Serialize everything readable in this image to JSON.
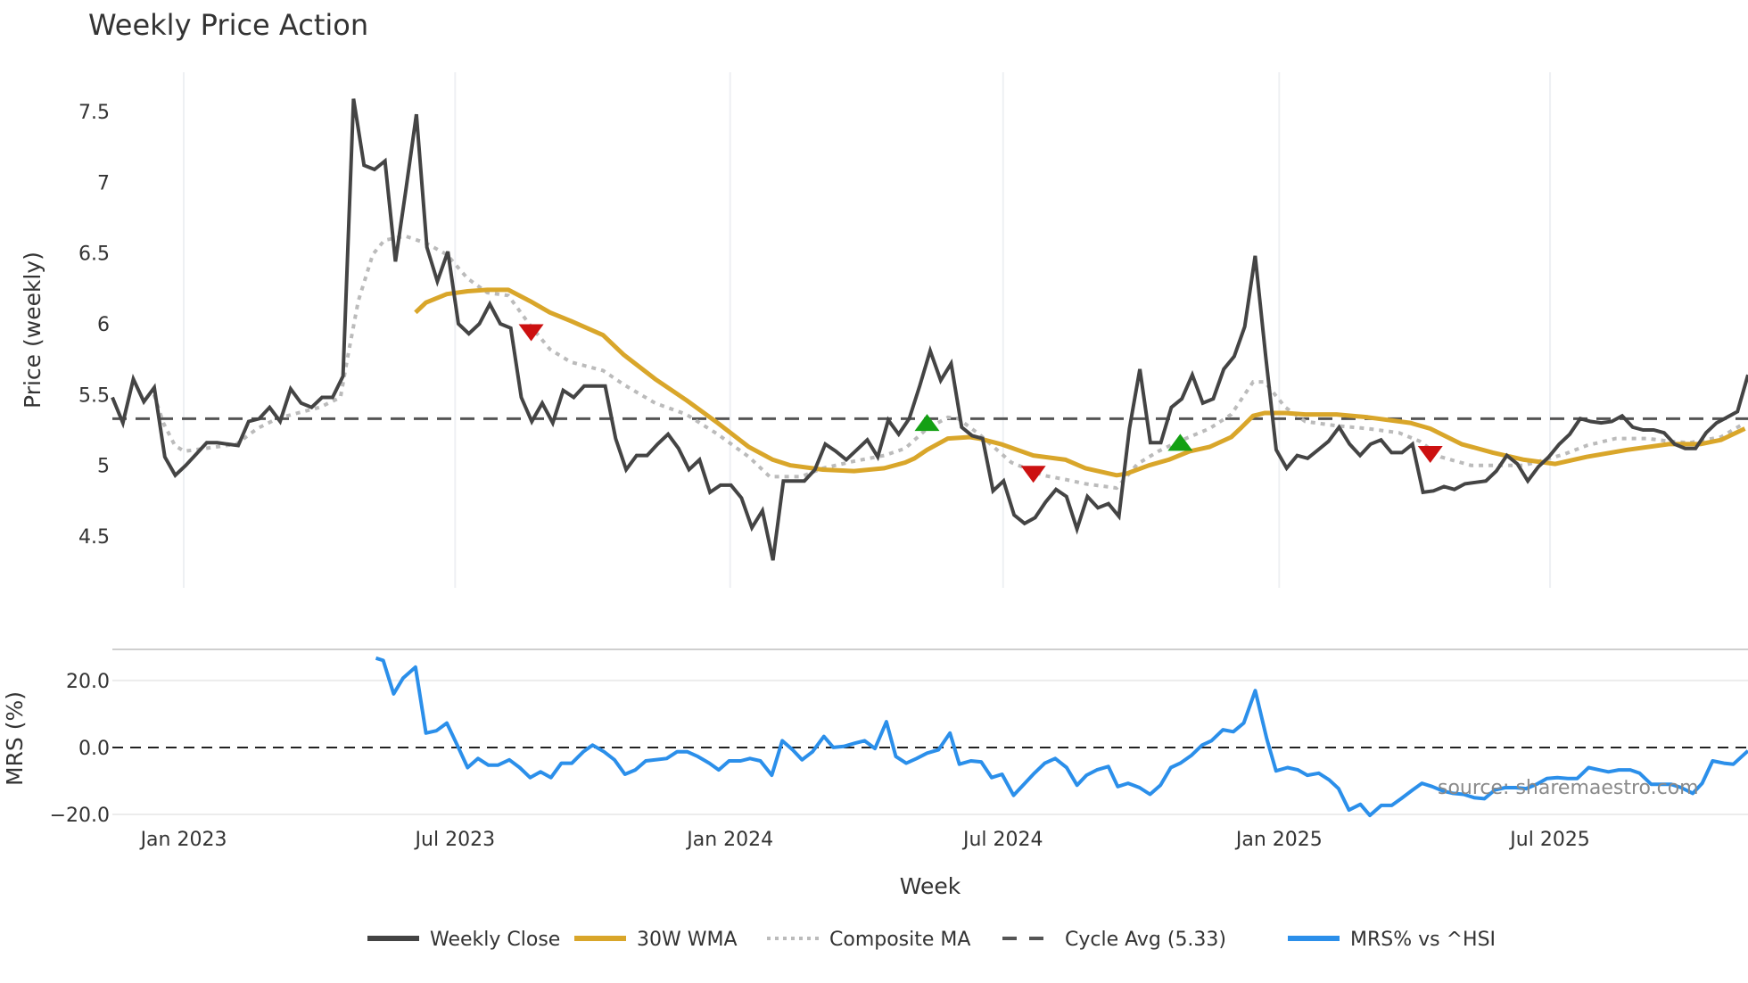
{
  "chart_data": {
    "type": "line",
    "title": "Weekly Price Action",
    "xlabel": "Week",
    "source_text": "source: sharemaestro.com",
    "x_range_weeks": [
      0,
      157
    ],
    "x_ticks": [
      {
        "label": "Jan 2023",
        "week": 6.85
      },
      {
        "label": "Jul 2023",
        "week": 32.9
      },
      {
        "label": "Jan 2024",
        "week": 59.3
      },
      {
        "label": "Jul 2024",
        "week": 85.5
      },
      {
        "label": "Jan 2025",
        "week": 112.0
      },
      {
        "label": "Jul 2025",
        "week": 138.0
      }
    ],
    "price_panel": {
      "ylabel": "Price (weekly)",
      "ylim": [
        4.135,
        7.777
      ],
      "y_ticks": [
        {
          "label": "4.5",
          "value": 4.5
        },
        {
          "label": "5",
          "value": 5
        },
        {
          "label": "5.5",
          "value": 5.5
        },
        {
          "label": "6",
          "value": 6
        },
        {
          "label": "6.5",
          "value": 6.5
        },
        {
          "label": "7",
          "value": 7
        },
        {
          "label": "7.5",
          "value": 7.5
        }
      ],
      "cycle_avg": 5.33,
      "weekly_close": [
        5.48,
        5.3,
        5.61,
        5.45,
        5.55,
        5.06,
        4.93,
        5.0,
        5.08,
        5.16,
        5.16,
        5.15,
        5.14,
        5.31,
        5.33,
        5.41,
        5.31,
        5.54,
        5.44,
        5.41,
        5.48,
        5.48,
        5.63,
        7.59,
        7.12,
        7.09,
        7.15,
        6.44,
        6.95,
        7.48,
        6.54,
        6.3,
        6.51,
        6.0,
        5.93,
        6.0,
        6.14,
        6.0,
        5.97,
        5.48,
        5.31,
        5.44,
        5.3,
        5.53,
        5.48,
        5.56,
        5.56,
        5.56,
        5.19,
        4.97,
        5.07,
        5.07,
        5.15,
        5.22,
        5.12,
        4.97,
        5.04,
        4.81,
        4.86,
        4.86,
        4.77,
        4.56,
        4.68,
        4.33,
        4.89,
        4.89,
        4.89,
        4.97,
        5.15,
        5.1,
        5.04,
        5.11,
        5.18,
        5.06,
        5.32,
        5.22,
        5.33,
        5.56,
        5.81,
        5.6,
        5.72,
        5.27,
        5.21,
        5.19,
        4.82,
        4.89,
        4.65,
        4.59,
        4.63,
        4.74,
        4.83,
        4.78,
        4.55,
        4.78,
        4.7,
        4.73,
        4.64,
        5.26,
        5.68,
        5.16,
        5.16,
        5.41,
        5.47,
        5.64,
        5.44,
        5.47,
        5.68,
        5.77,
        5.98,
        6.48,
        5.77,
        5.11,
        4.98,
        5.07,
        5.05,
        5.11,
        5.17,
        5.27,
        5.15,
        5.07,
        5.15,
        5.18,
        5.09,
        5.09,
        5.15,
        4.81,
        4.82,
        4.85,
        4.83,
        4.87,
        4.88,
        4.89,
        4.96,
        5.07,
        5.01,
        4.89,
        4.99,
        5.06,
        5.15,
        5.22,
        5.33,
        5.31,
        5.3,
        5.31,
        5.35,
        5.27,
        5.25,
        5.25,
        5.23,
        5.15,
        5.12,
        5.12,
        5.23,
        5.3,
        5.34,
        5.38,
        5.64
      ],
      "wma_30w": [
        [
          29.1,
          6.08
        ],
        [
          30.1,
          6.15
        ],
        [
          32.1,
          6.21
        ],
        [
          34.1,
          6.23
        ],
        [
          36.0,
          6.24
        ],
        [
          38.0,
          6.24
        ],
        [
          40.1,
          6.16
        ],
        [
          42.0,
          6.08
        ],
        [
          44.0,
          6.02
        ],
        [
          47.1,
          5.92
        ],
        [
          49.1,
          5.78
        ],
        [
          52.1,
          5.61
        ],
        [
          55.1,
          5.46
        ],
        [
          58.1,
          5.3
        ],
        [
          61.1,
          5.13
        ],
        [
          63.4,
          5.04
        ],
        [
          65.1,
          5.0
        ],
        [
          68.2,
          4.97
        ],
        [
          71.2,
          4.96
        ],
        [
          74.1,
          4.98
        ],
        [
          76.1,
          5.02
        ],
        [
          77.0,
          5.05
        ],
        [
          78.2,
          5.11
        ],
        [
          80.2,
          5.19
        ],
        [
          82.3,
          5.2
        ],
        [
          83.2,
          5.19
        ],
        [
          85.3,
          5.15
        ],
        [
          88.4,
          5.07
        ],
        [
          91.5,
          5.04
        ],
        [
          93.4,
          4.98
        ],
        [
          96.4,
          4.93
        ],
        [
          97.3,
          4.94
        ],
        [
          99.5,
          5.0
        ],
        [
          101.4,
          5.04
        ],
        [
          103.4,
          5.1
        ],
        [
          105.3,
          5.13
        ],
        [
          107.4,
          5.2
        ],
        [
          108.4,
          5.27
        ],
        [
          109.5,
          5.35
        ],
        [
          110.6,
          5.37
        ],
        [
          112.6,
          5.37
        ],
        [
          114.5,
          5.36
        ],
        [
          117.5,
          5.36
        ],
        [
          120.5,
          5.34
        ],
        [
          124.6,
          5.3
        ],
        [
          126.5,
          5.26
        ],
        [
          129.5,
          5.15
        ],
        [
          132.5,
          5.09
        ],
        [
          135.5,
          5.04
        ],
        [
          138.5,
          5.01
        ],
        [
          141.5,
          5.06
        ],
        [
          145.4,
          5.11
        ],
        [
          149.4,
          5.15
        ],
        [
          152.4,
          5.15
        ],
        [
          154.4,
          5.18
        ],
        [
          156.7,
          5.26
        ]
      ],
      "composite_ma": [
        [
          4.0,
          5.5
        ],
        [
          4.9,
          5.3
        ],
        [
          6.0,
          5.14
        ],
        [
          6.9,
          5.1
        ],
        [
          8.9,
          5.12
        ],
        [
          11.9,
          5.15
        ],
        [
          13.9,
          5.26
        ],
        [
          15.8,
          5.33
        ],
        [
          17.8,
          5.37
        ],
        [
          19.9,
          5.41
        ],
        [
          21.9,
          5.48
        ],
        [
          22.6,
          5.77
        ],
        [
          23.6,
          6.16
        ],
        [
          25.0,
          6.49
        ],
        [
          26.1,
          6.59
        ],
        [
          28.1,
          6.62
        ],
        [
          30.1,
          6.57
        ],
        [
          32.1,
          6.49
        ],
        [
          34.1,
          6.32
        ],
        [
          36.0,
          6.22
        ],
        [
          38.0,
          6.2
        ],
        [
          40.1,
          5.99
        ],
        [
          42.0,
          5.82
        ],
        [
          44.0,
          5.73
        ],
        [
          47.1,
          5.67
        ],
        [
          49.1,
          5.57
        ],
        [
          52.1,
          5.44
        ],
        [
          55.1,
          5.36
        ],
        [
          58.1,
          5.22
        ],
        [
          61.1,
          5.06
        ],
        [
          63.1,
          4.92
        ],
        [
          66.1,
          4.92
        ],
        [
          68.2,
          4.98
        ],
        [
          71.2,
          5.03
        ],
        [
          74.1,
          5.07
        ],
        [
          76.1,
          5.12
        ],
        [
          78.2,
          5.26
        ],
        [
          80.2,
          5.34
        ],
        [
          81.2,
          5.33
        ],
        [
          83.2,
          5.22
        ],
        [
          86.3,
          5.02
        ],
        [
          89.3,
          4.93
        ],
        [
          91.5,
          4.9
        ],
        [
          93.4,
          4.87
        ],
        [
          96.4,
          4.84
        ],
        [
          98.4,
          5.01
        ],
        [
          100.4,
          5.1
        ],
        [
          102.4,
          5.17
        ],
        [
          105.3,
          5.26
        ],
        [
          107.4,
          5.36
        ],
        [
          109.5,
          5.59
        ],
        [
          110.6,
          5.59
        ],
        [
          112.6,
          5.41
        ],
        [
          114.5,
          5.31
        ],
        [
          117.5,
          5.28
        ],
        [
          120.5,
          5.26
        ],
        [
          123.5,
          5.23
        ],
        [
          125.5,
          5.17
        ],
        [
          127.5,
          5.06
        ],
        [
          130.4,
          5.0
        ],
        [
          133.4,
          5.0
        ],
        [
          135.5,
          5.0
        ],
        [
          137.5,
          5.04
        ],
        [
          139.4,
          5.08
        ],
        [
          141.5,
          5.14
        ],
        [
          144.3,
          5.19
        ],
        [
          147.4,
          5.19
        ],
        [
          149.4,
          5.17
        ],
        [
          151.4,
          5.16
        ],
        [
          154.4,
          5.2
        ],
        [
          156.7,
          5.3
        ]
      ],
      "signals": [
        {
          "type": "sell",
          "week": 40.2,
          "value": 5.94
        },
        {
          "type": "buy",
          "week": 78.2,
          "value": 5.3
        },
        {
          "type": "sell",
          "week": 88.4,
          "value": 4.94
        },
        {
          "type": "buy",
          "week": 102.5,
          "value": 5.16
        },
        {
          "type": "sell",
          "week": 126.5,
          "value": 5.08
        }
      ]
    },
    "mrs_panel": {
      "ylabel": "MRS (%)",
      "ylim": [
        -23.2,
        29.3
      ],
      "y_ticks": [
        {
          "label": "20.0",
          "value": 20
        },
        {
          "label": "0.0",
          "value": 0
        },
        {
          "label": "−20.0",
          "value": -20
        }
      ],
      "mrs_vs_hsi": [
        [
          25.3,
          26.7
        ],
        [
          26.0,
          26.0
        ],
        [
          27.0,
          16.0
        ],
        [
          27.9,
          20.7
        ],
        [
          29.1,
          24.0
        ],
        [
          30.1,
          4.3
        ],
        [
          31.1,
          5.0
        ],
        [
          32.1,
          7.3
        ],
        [
          33.1,
          0.7
        ],
        [
          34.1,
          -6.0
        ],
        [
          35.1,
          -3.3
        ],
        [
          36.1,
          -5.3
        ],
        [
          37.0,
          -5.3
        ],
        [
          38.1,
          -3.7
        ],
        [
          39.1,
          -6.0
        ],
        [
          40.1,
          -9.0
        ],
        [
          41.1,
          -7.3
        ],
        [
          42.1,
          -9.0
        ],
        [
          43.1,
          -4.7
        ],
        [
          44.1,
          -4.7
        ],
        [
          45.2,
          -1.3
        ],
        [
          46.1,
          0.7
        ],
        [
          47.2,
          -1.3
        ],
        [
          48.2,
          -3.7
        ],
        [
          49.2,
          -8.0
        ],
        [
          50.2,
          -6.7
        ],
        [
          51.2,
          -4.0
        ],
        [
          53.2,
          -3.3
        ],
        [
          54.2,
          -1.3
        ],
        [
          55.2,
          -1.3
        ],
        [
          56.2,
          -2.7
        ],
        [
          57.3,
          -4.7
        ],
        [
          58.2,
          -6.7
        ],
        [
          59.2,
          -4.0
        ],
        [
          60.3,
          -4.0
        ],
        [
          61.2,
          -3.3
        ],
        [
          62.2,
          -4.0
        ],
        [
          63.3,
          -8.3
        ],
        [
          64.3,
          2.0
        ],
        [
          65.3,
          -0.7
        ],
        [
          66.2,
          -3.7
        ],
        [
          67.2,
          -1.3
        ],
        [
          68.3,
          3.3
        ],
        [
          69.2,
          0.0
        ],
        [
          70.2,
          0.3
        ],
        [
          71.3,
          1.3
        ],
        [
          72.2,
          2.0
        ],
        [
          73.2,
          -0.3
        ],
        [
          74.3,
          7.7
        ],
        [
          75.2,
          -2.7
        ],
        [
          76.2,
          -4.7
        ],
        [
          77.2,
          -3.3
        ],
        [
          78.2,
          -1.7
        ],
        [
          79.3,
          -0.7
        ],
        [
          80.4,
          4.3
        ],
        [
          81.3,
          -5.0
        ],
        [
          82.4,
          -4.0
        ],
        [
          83.4,
          -4.3
        ],
        [
          84.4,
          -9.0
        ],
        [
          85.4,
          -8.0
        ],
        [
          86.5,
          -14.3
        ],
        [
          87.5,
          -11.0
        ],
        [
          88.5,
          -7.7
        ],
        [
          89.5,
          -4.7
        ],
        [
          90.5,
          -3.3
        ],
        [
          91.6,
          -6.0
        ],
        [
          92.6,
          -11.3
        ],
        [
          93.5,
          -8.3
        ],
        [
          94.5,
          -6.7
        ],
        [
          95.6,
          -5.7
        ],
        [
          96.5,
          -11.7
        ],
        [
          97.5,
          -10.7
        ],
        [
          98.6,
          -12.0
        ],
        [
          99.6,
          -14.0
        ],
        [
          100.6,
          -11.3
        ],
        [
          101.6,
          -6.0
        ],
        [
          102.5,
          -4.7
        ],
        [
          103.6,
          -2.3
        ],
        [
          104.6,
          0.7
        ],
        [
          105.5,
          2.0
        ],
        [
          106.6,
          5.3
        ],
        [
          107.6,
          4.7
        ],
        [
          108.6,
          7.3
        ],
        [
          109.7,
          17.0
        ],
        [
          110.8,
          2.7
        ],
        [
          111.7,
          -7.0
        ],
        [
          112.8,
          -6.0
        ],
        [
          113.8,
          -6.7
        ],
        [
          114.7,
          -8.3
        ],
        [
          115.8,
          -7.7
        ],
        [
          116.8,
          -9.7
        ],
        [
          117.7,
          -12.3
        ],
        [
          118.7,
          -18.7
        ],
        [
          119.8,
          -17.0
        ],
        [
          120.7,
          -20.3
        ],
        [
          121.8,
          -17.3
        ],
        [
          122.8,
          -17.3
        ],
        [
          123.7,
          -15.3
        ],
        [
          124.8,
          -12.7
        ],
        [
          125.7,
          -10.7
        ],
        [
          126.7,
          -11.7
        ],
        [
          127.7,
          -13.0
        ],
        [
          128.7,
          -13.7
        ],
        [
          129.7,
          -14.0
        ],
        [
          130.7,
          -15.0
        ],
        [
          131.7,
          -15.3
        ],
        [
          132.7,
          -12.7
        ],
        [
          133.7,
          -12.0
        ],
        [
          134.7,
          -12.0
        ],
        [
          135.7,
          -12.3
        ],
        [
          136.7,
          -11.0
        ],
        [
          137.7,
          -9.3
        ],
        [
          138.7,
          -9.0
        ],
        [
          139.7,
          -9.3
        ],
        [
          140.6,
          -9.3
        ],
        [
          141.7,
          -6.0
        ],
        [
          142.7,
          -6.7
        ],
        [
          143.6,
          -7.3
        ],
        [
          144.6,
          -6.7
        ],
        [
          145.7,
          -6.7
        ],
        [
          146.6,
          -7.7
        ],
        [
          147.7,
          -11.0
        ],
        [
          148.6,
          -11.0
        ],
        [
          149.6,
          -11.0
        ],
        [
          150.6,
          -12.0
        ],
        [
          151.7,
          -13.7
        ],
        [
          152.6,
          -10.7
        ],
        [
          153.6,
          -4.0
        ],
        [
          154.7,
          -4.7
        ],
        [
          155.6,
          -5.0
        ],
        [
          157.0,
          -1.0
        ]
      ]
    },
    "legend": [
      {
        "key": "close",
        "label": "Weekly Close",
        "color": "#444444",
        "style": "solid"
      },
      {
        "key": "wma",
        "label": "30W WMA",
        "color": "#D9A62A",
        "style": "solid"
      },
      {
        "key": "composite",
        "label": "Composite MA",
        "color": "#BBBBBB",
        "style": "dotted"
      },
      {
        "key": "cycle",
        "label": "Cycle Avg (5.33)",
        "color": "#555555",
        "style": "dashed"
      },
      {
        "key": "mrs",
        "label": "MRS% vs ^HSI",
        "color": "#2B8FEA",
        "style": "solid"
      }
    ],
    "colors": {
      "sell": "#CC1111",
      "buy": "#14A014",
      "grid": "#EEF0F3"
    }
  }
}
